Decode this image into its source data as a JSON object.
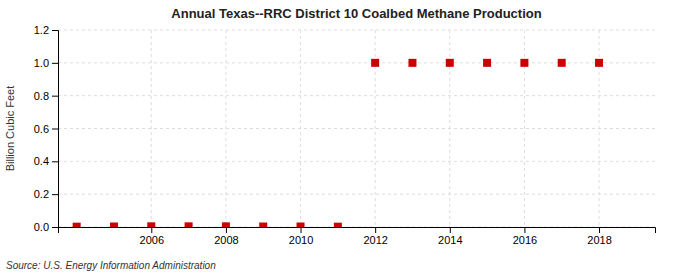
{
  "chart_data": {
    "type": "scatter",
    "title": "Annual Texas--RRC District 10 Coalbed Methane Production",
    "ylabel": "Billion Cubic Feet",
    "source": "Source: U.S. Energy Information Administration",
    "x": [
      2004,
      2005,
      2006,
      2007,
      2008,
      2009,
      2010,
      2011,
      2012,
      2013,
      2014,
      2015,
      2016,
      2017,
      2018
    ],
    "values": [
      0.002,
      0.003,
      0.004,
      0.004,
      0.004,
      0.003,
      0.003,
      0.002,
      1.0,
      1.0,
      1.0,
      1.0,
      1.0,
      1.0,
      1.0
    ],
    "color": "#cc0000",
    "marker": "square",
    "xlim": [
      2003.5,
      2019.5
    ],
    "xticks": [
      2006,
      2008,
      2010,
      2012,
      2014,
      2016,
      2018
    ],
    "ylim": [
      0.0,
      1.2
    ],
    "yticks": [
      {
        "value": 0.0,
        "label": "0.0"
      },
      0.2,
      0.4,
      0.6,
      0.8,
      {
        "value": 1.0,
        "label": "1.0"
      },
      1.2
    ],
    "grid": true
  }
}
